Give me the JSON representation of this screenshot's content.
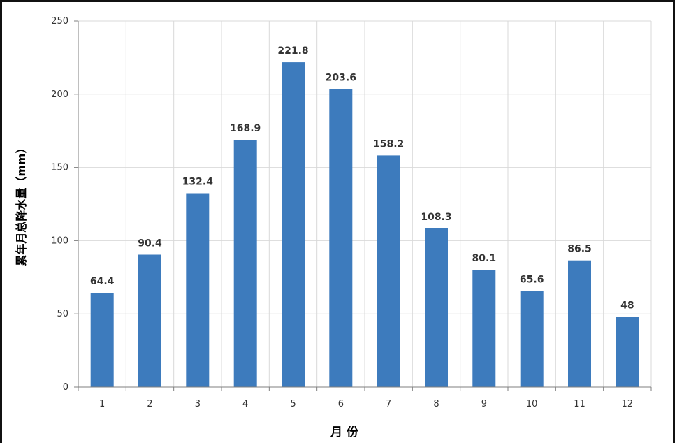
{
  "chart_data": {
    "type": "bar",
    "categories": [
      "1",
      "2",
      "3",
      "4",
      "5",
      "6",
      "7",
      "8",
      "9",
      "10",
      "11",
      "12"
    ],
    "values": [
      64.4,
      90.4,
      132.4,
      168.9,
      221.8,
      203.6,
      158.2,
      108.3,
      80.1,
      65.6,
      86.5,
      48
    ],
    "value_labels": [
      "64.4",
      "90.4",
      "132.4",
      "168.9",
      "221.8",
      "203.6",
      "158.2",
      "108.3",
      "80.1",
      "65.6",
      "86.5",
      "48"
    ],
    "xlabel": "月 份",
    "ylabel": "累年月总降水量（mm）",
    "ylim": [
      0,
      250
    ],
    "yticks": [
      "0",
      "50",
      "100",
      "150",
      "200",
      "250"
    ],
    "grid": true,
    "bar_color": "#3d7bbd"
  }
}
